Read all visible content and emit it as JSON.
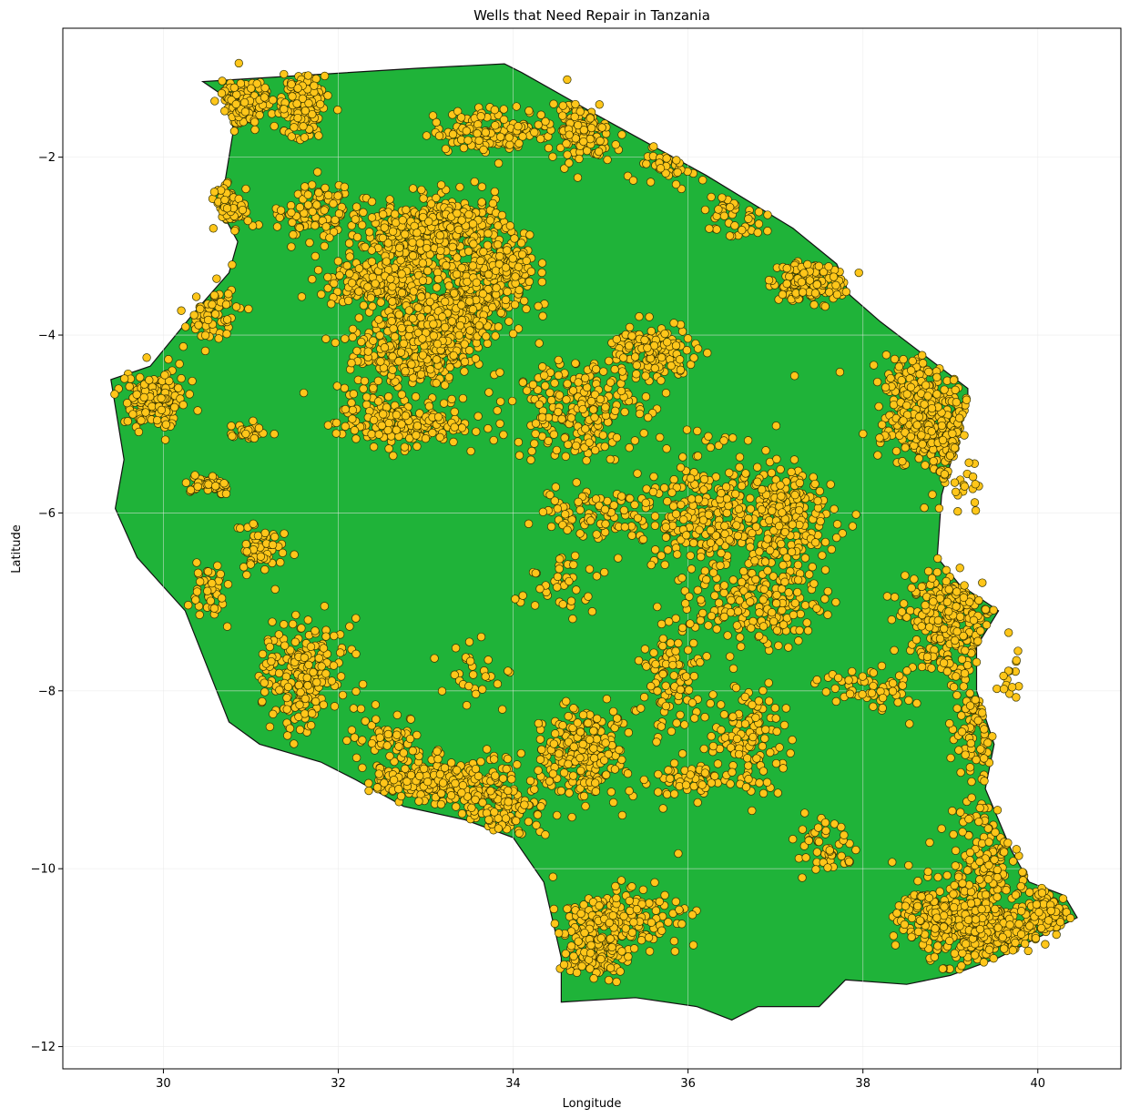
{
  "chart_data": {
    "type": "scatter",
    "title": "Wells that Need Repair in Tanzania",
    "xlabel": "Longitude",
    "ylabel": "Latitude",
    "xlim": [
      28.85,
      40.95
    ],
    "ylim": [
      -12.25,
      -0.55
    ],
    "xticks": [
      30,
      32,
      34,
      36,
      38,
      40
    ],
    "yticks": [
      -12,
      -10,
      -8,
      -6,
      -4,
      -2
    ],
    "grid": true,
    "colors": {
      "land": "#1fb339",
      "land_edge": "#111111",
      "marker": "#ffc61a",
      "marker_edge": "#333300",
      "grid": "#e8e8e8"
    },
    "boundary": [
      [
        30.45,
        -1.15
      ],
      [
        32.9,
        -1.0
      ],
      [
        33.9,
        -0.95
      ],
      [
        34.1,
        -1.05
      ],
      [
        35.0,
        -1.55
      ],
      [
        36.2,
        -2.2
      ],
      [
        37.2,
        -2.8
      ],
      [
        37.7,
        -3.2
      ],
      [
        37.85,
        -3.55
      ],
      [
        38.2,
        -3.85
      ],
      [
        39.2,
        -4.6
      ],
      [
        39.2,
        -4.75
      ],
      [
        38.9,
        -5.8
      ],
      [
        38.85,
        -6.5
      ],
      [
        39.1,
        -6.8
      ],
      [
        39.55,
        -7.1
      ],
      [
        39.3,
        -7.5
      ],
      [
        39.3,
        -8.0
      ],
      [
        39.5,
        -8.6
      ],
      [
        39.4,
        -9.1
      ],
      [
        39.7,
        -9.8
      ],
      [
        39.9,
        -10.15
      ],
      [
        40.3,
        -10.3
      ],
      [
        40.45,
        -10.55
      ],
      [
        39.55,
        -11.0
      ],
      [
        39.0,
        -11.2
      ],
      [
        38.5,
        -11.3
      ],
      [
        37.8,
        -11.25
      ],
      [
        37.5,
        -11.55
      ],
      [
        37.05,
        -11.55
      ],
      [
        36.8,
        -11.55
      ],
      [
        36.5,
        -11.7
      ],
      [
        36.1,
        -11.55
      ],
      [
        35.4,
        -11.45
      ],
      [
        34.55,
        -11.5
      ],
      [
        34.55,
        -11.0
      ],
      [
        34.35,
        -10.15
      ],
      [
        34.0,
        -9.65
      ],
      [
        33.45,
        -9.45
      ],
      [
        32.75,
        -9.3
      ],
      [
        32.2,
        -9.0
      ],
      [
        31.8,
        -8.8
      ],
      [
        31.1,
        -8.6
      ],
      [
        30.75,
        -8.35
      ],
      [
        30.25,
        -7.1
      ],
      [
        29.7,
        -6.5
      ],
      [
        29.45,
        -5.95
      ],
      [
        29.55,
        -5.4
      ],
      [
        29.4,
        -4.5
      ],
      [
        29.85,
        -4.35
      ],
      [
        30.35,
        -3.75
      ],
      [
        30.75,
        -3.3
      ],
      [
        30.85,
        -2.95
      ],
      [
        30.55,
        -2.4
      ],
      [
        30.7,
        -2.3
      ],
      [
        30.8,
        -1.7
      ],
      [
        30.75,
        -1.35
      ],
      [
        30.45,
        -1.15
      ]
    ],
    "clusters": [
      [
        30.9,
        -1.4,
        0.3,
        0.2,
        160
      ],
      [
        31.6,
        -1.4,
        0.2,
        0.3,
        150
      ],
      [
        31.7,
        -2.6,
        0.4,
        0.3,
        100
      ],
      [
        30.7,
        -2.6,
        0.2,
        0.2,
        90
      ],
      [
        32.4,
        -3.4,
        0.4,
        0.2,
        220
      ],
      [
        32.8,
        -3.0,
        0.5,
        0.4,
        260
      ],
      [
        33.3,
        -2.8,
        0.5,
        0.3,
        280
      ],
      [
        33.5,
        -3.6,
        0.5,
        0.3,
        240
      ],
      [
        32.8,
        -4.2,
        0.6,
        0.5,
        260
      ],
      [
        33.2,
        -3.9,
        0.4,
        0.3,
        200
      ],
      [
        32.7,
        -5.0,
        0.6,
        0.2,
        180
      ],
      [
        33.9,
        -3.2,
        0.3,
        0.2,
        110
      ],
      [
        33.8,
        -1.7,
        0.6,
        0.2,
        150
      ],
      [
        34.8,
        -1.7,
        0.3,
        0.3,
        120
      ],
      [
        34.7,
        -4.8,
        0.6,
        0.5,
        220
      ],
      [
        35.6,
        -4.2,
        0.4,
        0.3,
        140
      ],
      [
        36.3,
        -6.0,
        0.8,
        0.6,
        320
      ],
      [
        37.1,
        -6.1,
        0.5,
        0.4,
        180
      ],
      [
        36.8,
        -7.0,
        0.6,
        0.4,
        180
      ],
      [
        37.4,
        -3.4,
        0.4,
        0.2,
        140
      ],
      [
        38.6,
        -4.6,
        0.3,
        0.4,
        130
      ],
      [
        38.7,
        -5.1,
        0.4,
        0.3,
        180
      ],
      [
        39.1,
        -5.4,
        0.2,
        0.6,
        120
      ],
      [
        39.0,
        -7.2,
        0.4,
        0.5,
        260
      ],
      [
        39.3,
        -8.4,
        0.2,
        0.5,
        90
      ],
      [
        39.5,
        -9.8,
        0.4,
        0.6,
        140
      ],
      [
        39.4,
        -10.7,
        0.6,
        0.3,
        320
      ],
      [
        38.9,
        -10.5,
        0.4,
        0.3,
        160
      ],
      [
        40.1,
        -10.5,
        0.2,
        0.2,
        120
      ],
      [
        35.2,
        -10.6,
        0.6,
        0.3,
        200
      ],
      [
        34.9,
        -11.0,
        0.3,
        0.2,
        90
      ],
      [
        33.0,
        -9.0,
        0.5,
        0.2,
        220
      ],
      [
        33.8,
        -9.2,
        0.4,
        0.4,
        180
      ],
      [
        34.8,
        -8.7,
        0.4,
        0.4,
        220
      ],
      [
        31.6,
        -7.8,
        0.4,
        0.5,
        220
      ],
      [
        29.9,
        -4.7,
        0.3,
        0.3,
        180
      ],
      [
        30.5,
        -3.7,
        0.3,
        0.3,
        70
      ],
      [
        36.0,
        -9.0,
        0.3,
        0.2,
        60
      ],
      [
        36.7,
        -8.5,
        0.4,
        0.5,
        120
      ],
      [
        35.8,
        -7.8,
        0.3,
        0.5,
        100
      ],
      [
        31.1,
        -6.4,
        0.2,
        0.2,
        60
      ],
      [
        30.5,
        -5.7,
        0.2,
        0.1,
        50
      ],
      [
        37.6,
        -9.8,
        0.3,
        0.3,
        50
      ],
      [
        38.2,
        -8.0,
        0.5,
        0.2,
        60
      ],
      [
        39.7,
        -7.8,
        0.1,
        0.2,
        30
      ],
      [
        36.6,
        -2.7,
        0.3,
        0.2,
        40
      ],
      [
        35.8,
        -2.1,
        0.4,
        0.2,
        40
      ],
      [
        33.6,
        -7.8,
        0.3,
        0.3,
        30
      ],
      [
        32.6,
        -8.5,
        0.4,
        0.2,
        50
      ],
      [
        35.0,
        -6.0,
        0.6,
        0.2,
        80
      ],
      [
        34.5,
        -6.8,
        0.3,
        0.3,
        40
      ],
      [
        30.5,
        -6.9,
        0.2,
        0.3,
        40
      ],
      [
        31.0,
        -5.1,
        0.2,
        0.1,
        30
      ]
    ]
  }
}
